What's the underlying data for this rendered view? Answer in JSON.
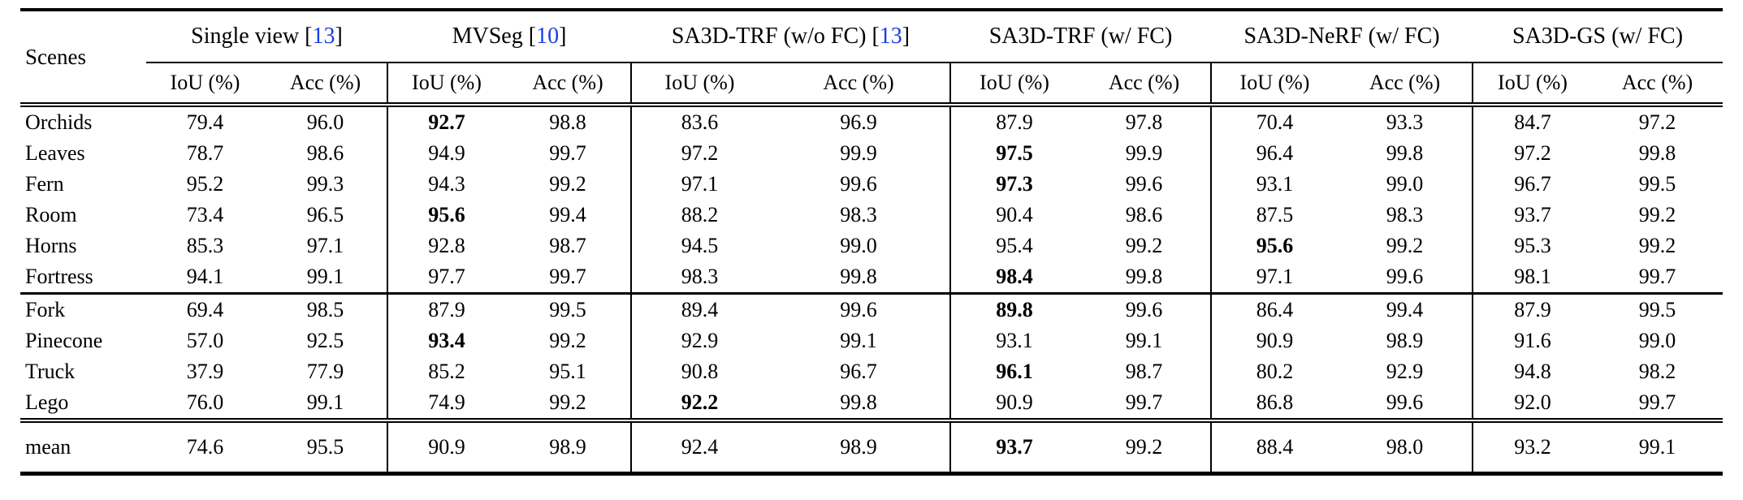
{
  "table": {
    "corner_label": "Scenes",
    "subcols": [
      "IoU (%)",
      "Acc (%)"
    ],
    "cite_prefix": " [",
    "cite_suffix": "]",
    "colors": {
      "citation": "#1b3de8",
      "text": "#000000",
      "background": "#ffffff"
    },
    "groups": [
      {
        "name": "Single view",
        "cite": "13"
      },
      {
        "name": "MVSeg",
        "cite": "10"
      },
      {
        "name": "SA3D-TRF (w/o FC)",
        "cite": "13"
      },
      {
        "name": "SA3D-TRF (w/ FC)",
        "cite": null
      },
      {
        "name": "SA3D-NeRF (w/ FC)",
        "cite": null
      },
      {
        "name": "SA3D-GS (w/ FC)",
        "cite": null
      }
    ],
    "sections": [
      {
        "rows": [
          {
            "scene": "Orchids",
            "cells": [
              {
                "v": "79.4"
              },
              {
                "v": "96.0"
              },
              {
                "v": "92.7",
                "b": true
              },
              {
                "v": "98.8"
              },
              {
                "v": "83.6"
              },
              {
                "v": "96.9"
              },
              {
                "v": "87.9"
              },
              {
                "v": "97.8"
              },
              {
                "v": "70.4"
              },
              {
                "v": "93.3"
              },
              {
                "v": "84.7"
              },
              {
                "v": "97.2"
              }
            ]
          },
          {
            "scene": "Leaves",
            "cells": [
              {
                "v": "78.7"
              },
              {
                "v": "98.6"
              },
              {
                "v": "94.9"
              },
              {
                "v": "99.7"
              },
              {
                "v": "97.2"
              },
              {
                "v": "99.9"
              },
              {
                "v": "97.5",
                "b": true
              },
              {
                "v": "99.9"
              },
              {
                "v": "96.4"
              },
              {
                "v": "99.8"
              },
              {
                "v": "97.2"
              },
              {
                "v": "99.8"
              }
            ]
          },
          {
            "scene": "Fern",
            "cells": [
              {
                "v": "95.2"
              },
              {
                "v": "99.3"
              },
              {
                "v": "94.3"
              },
              {
                "v": "99.2"
              },
              {
                "v": "97.1"
              },
              {
                "v": "99.6"
              },
              {
                "v": "97.3",
                "b": true
              },
              {
                "v": "99.6"
              },
              {
                "v": "93.1"
              },
              {
                "v": "99.0"
              },
              {
                "v": "96.7"
              },
              {
                "v": "99.5"
              }
            ]
          },
          {
            "scene": "Room",
            "cells": [
              {
                "v": "73.4"
              },
              {
                "v": "96.5"
              },
              {
                "v": "95.6",
                "b": true
              },
              {
                "v": "99.4"
              },
              {
                "v": "88.2"
              },
              {
                "v": "98.3"
              },
              {
                "v": "90.4"
              },
              {
                "v": "98.6"
              },
              {
                "v": "87.5"
              },
              {
                "v": "98.3"
              },
              {
                "v": "93.7"
              },
              {
                "v": "99.2"
              }
            ]
          },
          {
            "scene": "Horns",
            "cells": [
              {
                "v": "85.3"
              },
              {
                "v": "97.1"
              },
              {
                "v": "92.8"
              },
              {
                "v": "98.7"
              },
              {
                "v": "94.5"
              },
              {
                "v": "99.0"
              },
              {
                "v": "95.4"
              },
              {
                "v": "99.2"
              },
              {
                "v": "95.6",
                "b": true
              },
              {
                "v": "99.2"
              },
              {
                "v": "95.3"
              },
              {
                "v": "99.2"
              }
            ]
          },
          {
            "scene": "Fortress",
            "cells": [
              {
                "v": "94.1"
              },
              {
                "v": "99.1"
              },
              {
                "v": "97.7"
              },
              {
                "v": "99.7"
              },
              {
                "v": "98.3"
              },
              {
                "v": "99.8"
              },
              {
                "v": "98.4",
                "b": true
              },
              {
                "v": "99.8"
              },
              {
                "v": "97.1"
              },
              {
                "v": "99.6"
              },
              {
                "v": "98.1"
              },
              {
                "v": "99.7"
              }
            ]
          }
        ]
      },
      {
        "rows": [
          {
            "scene": "Fork",
            "cells": [
              {
                "v": "69.4"
              },
              {
                "v": "98.5"
              },
              {
                "v": "87.9"
              },
              {
                "v": "99.5"
              },
              {
                "v": "89.4"
              },
              {
                "v": "99.6"
              },
              {
                "v": "89.8",
                "b": true
              },
              {
                "v": "99.6"
              },
              {
                "v": "86.4"
              },
              {
                "v": "99.4"
              },
              {
                "v": "87.9"
              },
              {
                "v": "99.5"
              }
            ]
          },
          {
            "scene": "Pinecone",
            "cells": [
              {
                "v": "57.0"
              },
              {
                "v": "92.5"
              },
              {
                "v": "93.4",
                "b": true
              },
              {
                "v": "99.2"
              },
              {
                "v": "92.9"
              },
              {
                "v": "99.1"
              },
              {
                "v": "93.1"
              },
              {
                "v": "99.1"
              },
              {
                "v": "90.9"
              },
              {
                "v": "98.9"
              },
              {
                "v": "91.6"
              },
              {
                "v": "99.0"
              }
            ]
          },
          {
            "scene": "Truck",
            "cells": [
              {
                "v": "37.9"
              },
              {
                "v": "77.9"
              },
              {
                "v": "85.2"
              },
              {
                "v": "95.1"
              },
              {
                "v": "90.8"
              },
              {
                "v": "96.7"
              },
              {
                "v": "96.1",
                "b": true
              },
              {
                "v": "98.7"
              },
              {
                "v": "80.2"
              },
              {
                "v": "92.9"
              },
              {
                "v": "94.8"
              },
              {
                "v": "98.2"
              }
            ]
          },
          {
            "scene": "Lego",
            "cells": [
              {
                "v": "76.0"
              },
              {
                "v": "99.1"
              },
              {
                "v": "74.9"
              },
              {
                "v": "99.2"
              },
              {
                "v": "92.2",
                "b": true
              },
              {
                "v": "99.8"
              },
              {
                "v": "90.9"
              },
              {
                "v": "99.7"
              },
              {
                "v": "86.8"
              },
              {
                "v": "99.6"
              },
              {
                "v": "92.0"
              },
              {
                "v": "99.7"
              }
            ]
          }
        ]
      },
      {
        "rows": [
          {
            "scene": "mean",
            "cells": [
              {
                "v": "74.6"
              },
              {
                "v": "95.5"
              },
              {
                "v": "90.9"
              },
              {
                "v": "98.9"
              },
              {
                "v": "92.4"
              },
              {
                "v": "98.9"
              },
              {
                "v": "93.7",
                "b": true
              },
              {
                "v": "99.2"
              },
              {
                "v": "88.4"
              },
              {
                "v": "98.0"
              },
              {
                "v": "93.2"
              },
              {
                "v": "99.1"
              }
            ]
          }
        ]
      }
    ]
  }
}
